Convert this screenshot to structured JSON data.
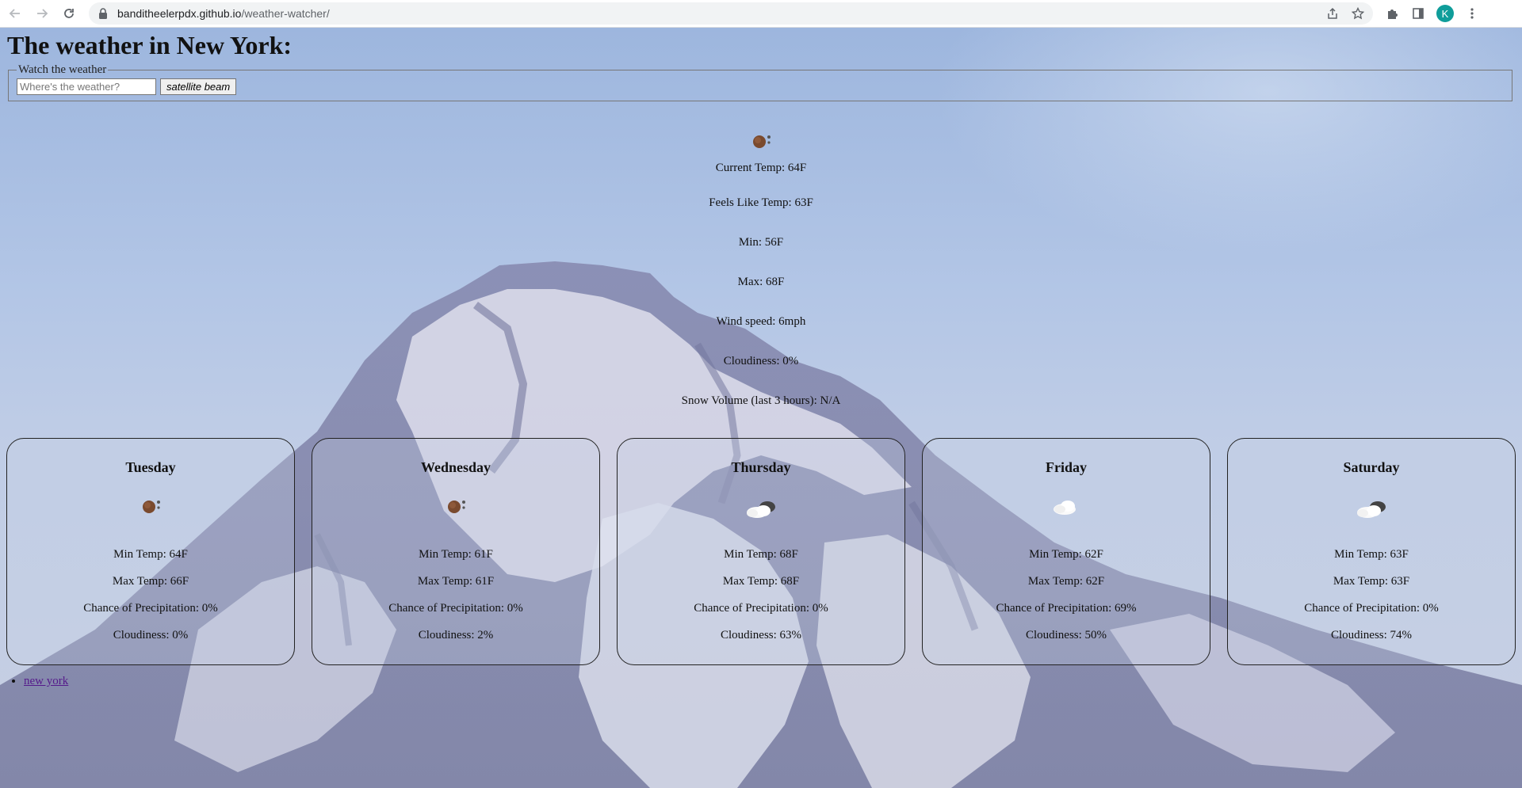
{
  "browser": {
    "url_host": "banditheelerpdx.github.io",
    "url_path": "/weather-watcher/",
    "avatar_letter": "K"
  },
  "page": {
    "title": "The weather in New York:",
    "search": {
      "legend": "Watch the weather",
      "placeholder": "Where's the weather?",
      "button": "satellite beam"
    },
    "current": {
      "icon": "sun-icon",
      "temp": "Current Temp: 64F",
      "feels": "Feels Like Temp: 63F",
      "min": "Min: 56F",
      "max": "Max: 68F",
      "wind": "Wind speed: 6mph",
      "cloud": "Cloudiness: 0%",
      "snow": "Snow Volume (last 3 hours): N/A"
    },
    "forecast": [
      {
        "day": "Tuesday",
        "icon": "sun-icon",
        "min": "Min Temp: 64F",
        "max": "Max Temp: 66F",
        "precip": "Chance of Precipitation: 0%",
        "cloud": "Cloudiness: 0%"
      },
      {
        "day": "Wednesday",
        "icon": "sun-icon",
        "min": "Min Temp: 61F",
        "max": "Max Temp: 61F",
        "precip": "Chance of Precipitation: 0%",
        "cloud": "Cloudiness: 2%"
      },
      {
        "day": "Thursday",
        "icon": "broken-clouds-icon",
        "min": "Min Temp: 68F",
        "max": "Max Temp: 68F",
        "precip": "Chance of Precipitation: 0%",
        "cloud": "Cloudiness: 63%"
      },
      {
        "day": "Friday",
        "icon": "cloud-icon",
        "min": "Min Temp: 62F",
        "max": "Max Temp: 62F",
        "precip": "Chance of Precipitation: 69%",
        "cloud": "Cloudiness: 50%"
      },
      {
        "day": "Saturday",
        "icon": "broken-clouds-icon",
        "min": "Min Temp: 63F",
        "max": "Max Temp: 63F",
        "precip": "Chance of Precipitation: 0%",
        "cloud": "Cloudiness: 74%"
      }
    ],
    "history": [
      "new york"
    ]
  }
}
